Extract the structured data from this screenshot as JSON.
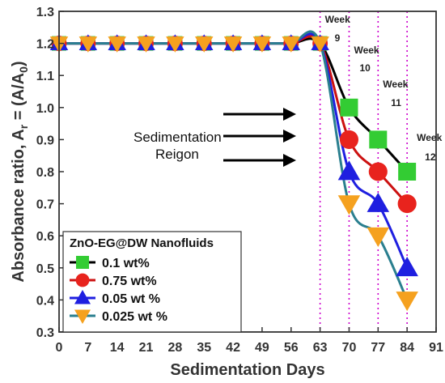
{
  "chart_data": {
    "type": "line",
    "xlabel": "Sedimentation Days",
    "ylabel": "Absorbance ratio, A",
    "ylabel_sub": "r",
    "ylabel_eq": " = (A/A",
    "ylabel_sub0": "0",
    "ylabel_end": ")",
    "xlim": [
      0,
      91
    ],
    "ylim": [
      0.3,
      1.3
    ],
    "xticks": [
      "0",
      "7",
      "14",
      "21",
      "28",
      "35",
      "42",
      "49",
      "56",
      "63",
      "70",
      "77",
      "84",
      "91"
    ],
    "yticks": [
      "0.3",
      "0.4",
      "0.5",
      "0.6",
      "0.7",
      "0.8",
      "0.9",
      "1.0",
      "1.1",
      "1.2",
      "1.3"
    ],
    "legend_title": "ZnO-EG@DW Nanofluids",
    "legend_position": "bottom-left",
    "series": [
      {
        "name": "0.1 wt%",
        "marker": "square",
        "color": "#33cc33",
        "line_color": "#000000",
        "x": [
          0,
          7,
          14,
          21,
          28,
          35,
          42,
          49,
          56,
          63,
          70,
          77,
          84
        ],
        "y": [
          1.2,
          1.2,
          1.2,
          1.2,
          1.2,
          1.2,
          1.2,
          1.2,
          1.2,
          1.2,
          1.0,
          0.9,
          0.8
        ]
      },
      {
        "name": "0.75 wt%",
        "marker": "circle",
        "color": "#e8231d",
        "line_color": "#cc1111",
        "x": [
          0,
          7,
          14,
          21,
          28,
          35,
          42,
          49,
          56,
          63,
          70,
          77,
          84
        ],
        "y": [
          1.2,
          1.2,
          1.2,
          1.2,
          1.2,
          1.2,
          1.2,
          1.2,
          1.2,
          1.2,
          0.9,
          0.8,
          0.7
        ]
      },
      {
        "name": "0.05 wt %",
        "marker": "triangle-up",
        "color": "#1f1fe0",
        "line_color": "#1f1fe0",
        "x": [
          0,
          7,
          14,
          21,
          28,
          35,
          42,
          49,
          56,
          63,
          70,
          77,
          84
        ],
        "y": [
          1.2,
          1.2,
          1.2,
          1.2,
          1.2,
          1.2,
          1.2,
          1.2,
          1.2,
          1.2,
          0.8,
          0.7,
          0.5
        ]
      },
      {
        "name": "0.025 wt %",
        "marker": "triangle-down",
        "color": "#f5a11f",
        "line_color": "#2a7f8f",
        "x": [
          0,
          7,
          14,
          21,
          28,
          35,
          42,
          49,
          56,
          63,
          70,
          77,
          84
        ],
        "y": [
          1.2,
          1.2,
          1.2,
          1.2,
          1.2,
          1.2,
          1.2,
          1.2,
          1.2,
          1.2,
          0.7,
          0.6,
          0.4
        ]
      }
    ],
    "week_markers": [
      {
        "x": 63,
        "week": "Week",
        "num": "9"
      },
      {
        "x": 70,
        "week": "Week",
        "num": "10"
      },
      {
        "x": 77,
        "week": "Week",
        "num": "11"
      },
      {
        "x": 84,
        "week": "Week",
        "num": "12"
      }
    ],
    "annotation": {
      "line1": "Sedimentation",
      "line2": "Reigon"
    },
    "week_line_color": "#cc00cc"
  }
}
